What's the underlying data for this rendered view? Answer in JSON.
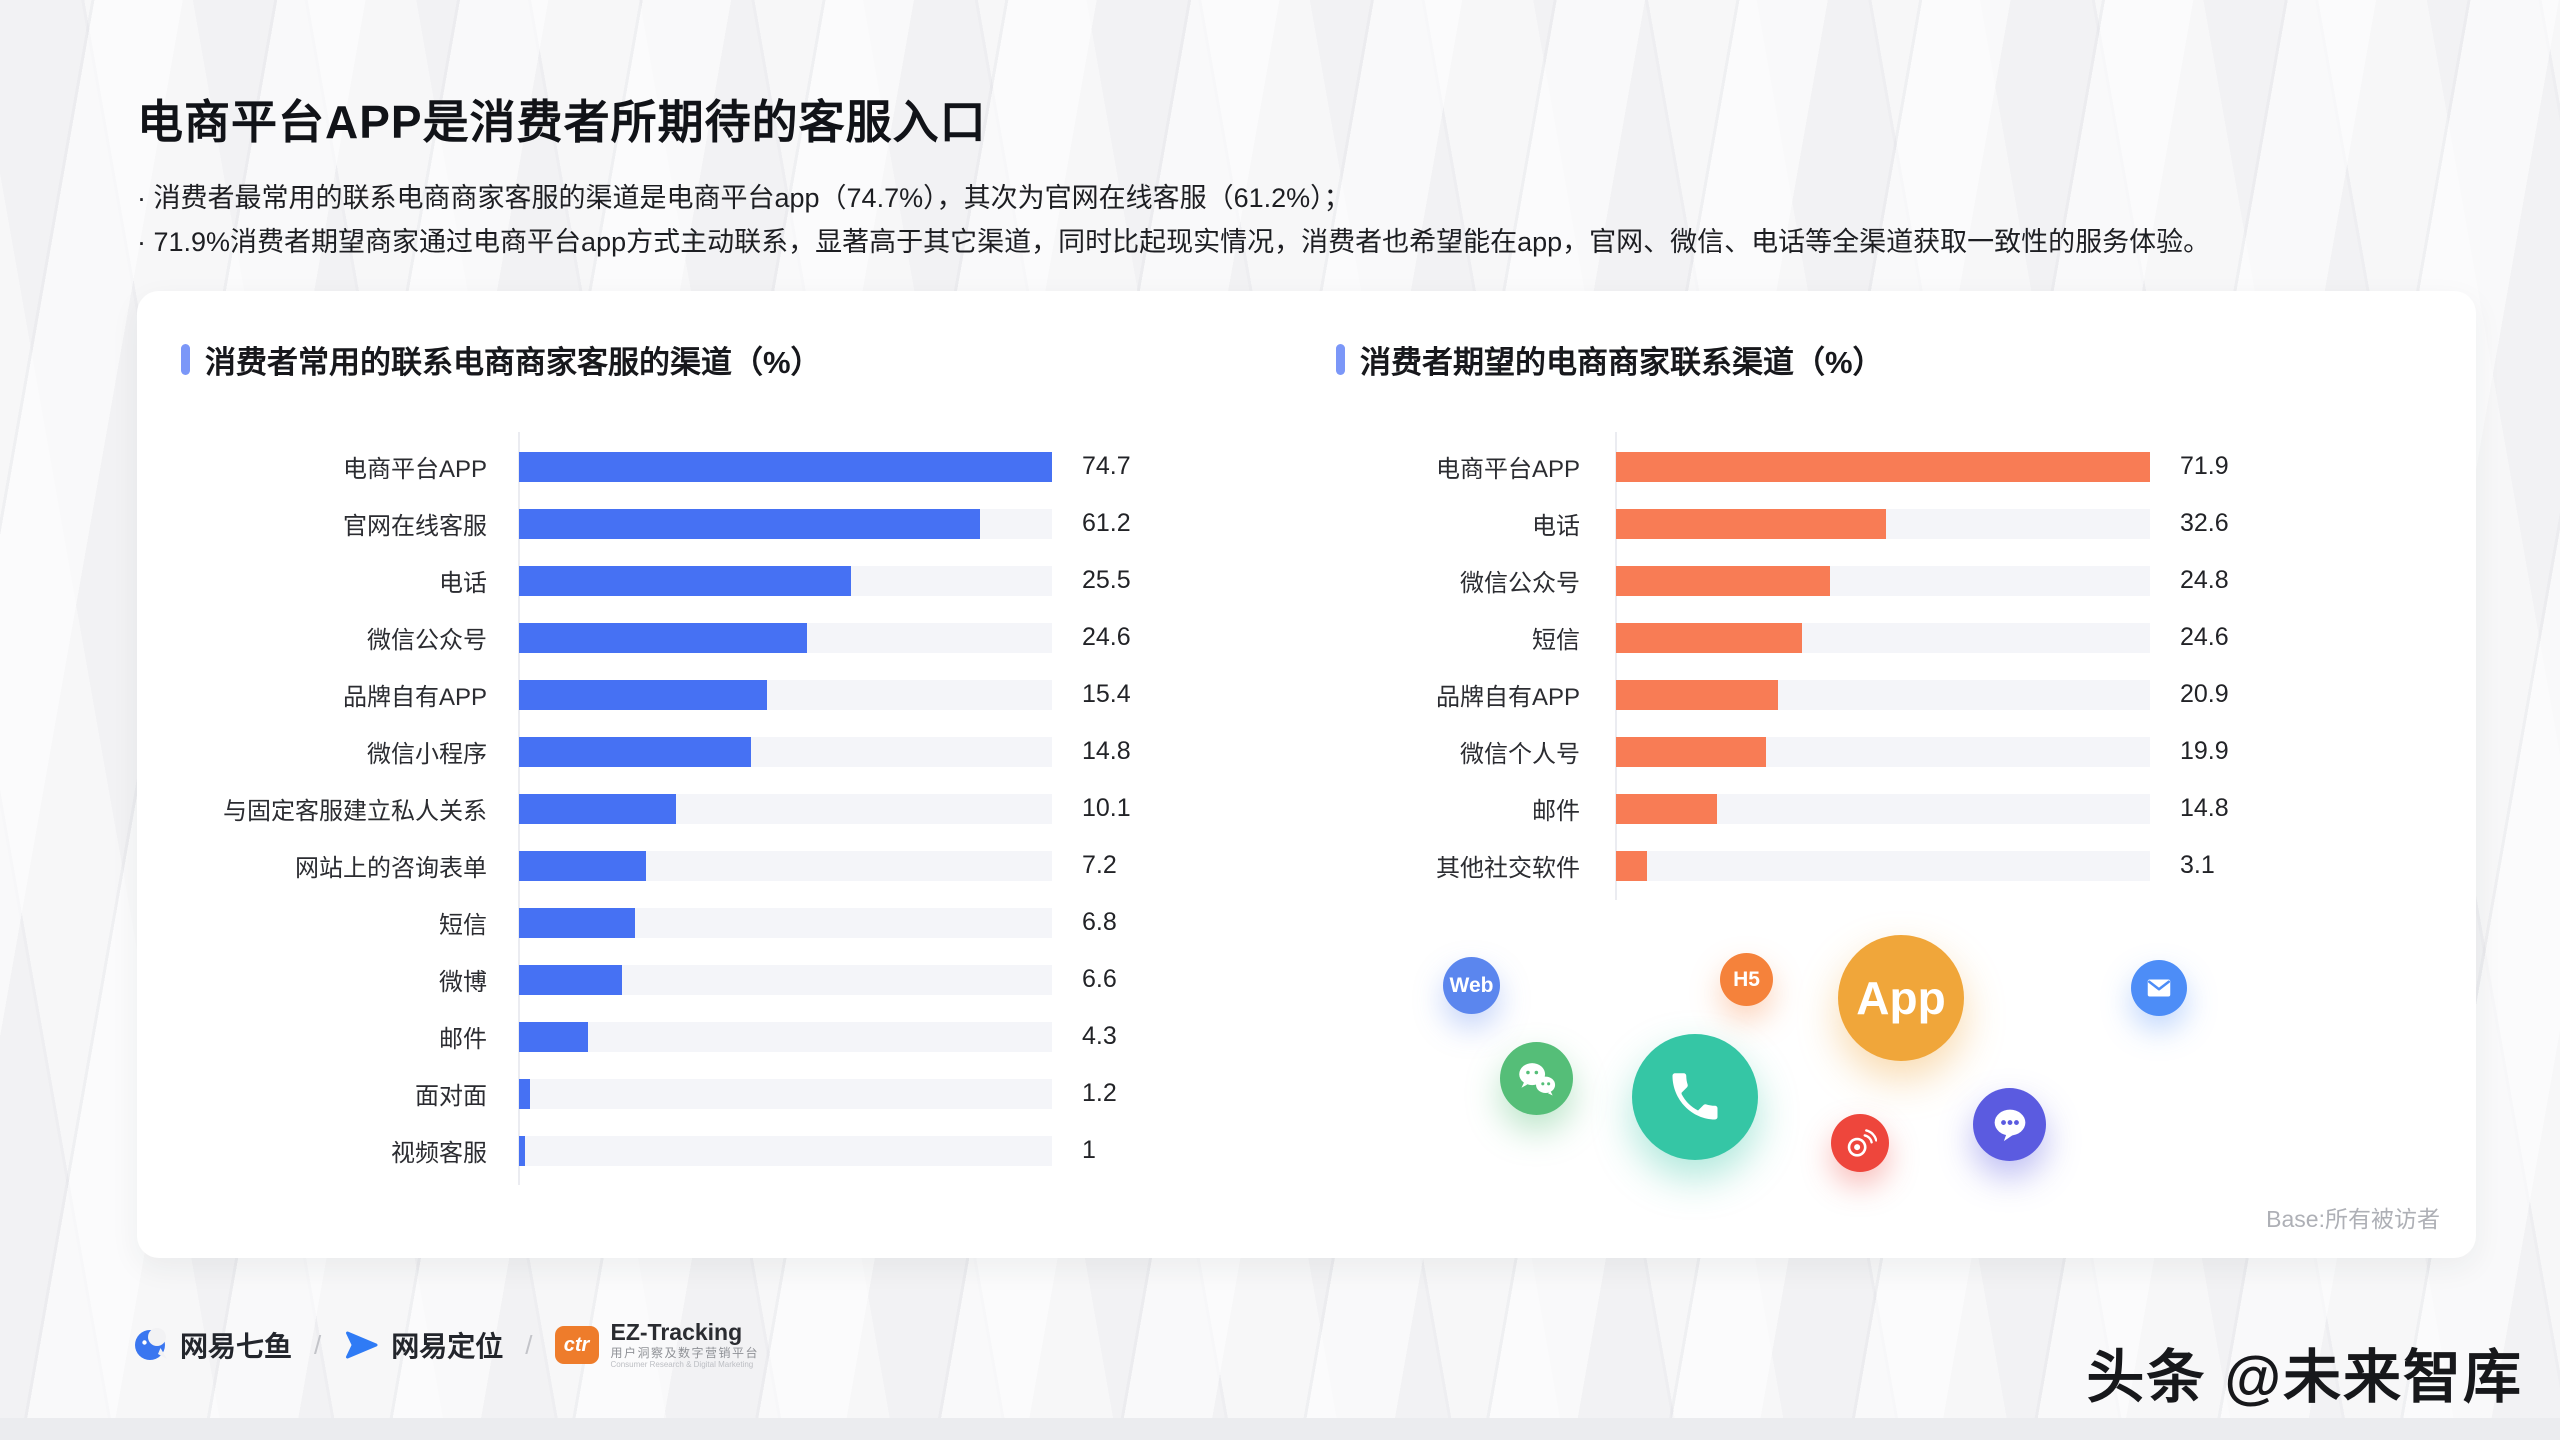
{
  "page": {
    "title": "电商平台APP是消费者所期待的客服入口",
    "bullets": [
      "· 消费者最常用的联系电商商家客服的渠道是电商平台app（74.7%），其次为官网在线客服（61.2%）；",
      "· 71.9%消费者期望商家通过电商平台app方式主动联系，显著高于其它渠道，同时比起现实情况，消费者也希望能在app，官网、微信、电话等全渠道获取一致性的服务体验。"
    ],
    "base_note": "Base:所有被访者",
    "watermark": "头条 @未来智库"
  },
  "ui": {
    "accent_color": "#7b97f8",
    "card_background": "#ffffff"
  },
  "chart_data": [
    {
      "type": "bar",
      "orientation": "horizontal",
      "title": "消费者常用的联系电商商家客服的渠道（%）",
      "categories": [
        "电商平台APP",
        "官网在线客服",
        "电话",
        "微信公众号",
        "品牌自有APP",
        "微信小程序",
        "与固定客服建立私人关系",
        "网站上的咨询表单",
        "短信",
        "微博",
        "邮件",
        "面对面",
        "视频客服"
      ],
      "values": [
        74.7,
        61.2,
        25.5,
        24.6,
        15.4,
        14.8,
        10.1,
        7.2,
        6.8,
        6.6,
        4.3,
        1.2,
        1
      ],
      "bar_color": "#4671f3",
      "track_color": "#f4f5f9",
      "bar_display_pct": [
        100,
        86.5,
        62.3,
        54.0,
        46.6,
        43.5,
        29.4,
        23.9,
        21.8,
        19.3,
        12.9,
        2.1,
        1.2
      ],
      "value_labels_shown": true,
      "grid": false,
      "legend": "none"
    },
    {
      "type": "bar",
      "orientation": "horizontal",
      "title": "消费者期望的电商商家联系渠道（%）",
      "categories": [
        "电商平台APP",
        "电话",
        "微信公众号",
        "短信",
        "品牌自有APP",
        "微信个人号",
        "邮件",
        "其他社交软件"
      ],
      "values": [
        71.9,
        32.6,
        24.8,
        24.6,
        20.9,
        19.9,
        14.8,
        3.1
      ],
      "bar_color": "#f87c55",
      "track_color": "#f4f5f9",
      "bar_display_pct": [
        100,
        50.5,
        40.1,
        34.9,
        30.3,
        28.1,
        19.0,
        5.8
      ],
      "value_labels_shown": true,
      "grid": false,
      "legend": "none"
    }
  ],
  "icon_cluster": {
    "web": {
      "label": "Web",
      "color": "#5b86ee"
    },
    "h5": {
      "label": "H5",
      "color": "#f5823b"
    },
    "app": {
      "label": "App",
      "color": "#f0a63a"
    },
    "email": {
      "color": "#4d8df7"
    },
    "wechat": {
      "color": "#55be78"
    },
    "phone": {
      "color": "#35c6a5"
    },
    "weibo": {
      "color": "#ee463c"
    },
    "chat": {
      "color": "#5b5be0"
    }
  },
  "footer": {
    "qiyu_label": "网易七鱼",
    "separator": "/",
    "dingwei_label": "网易定位",
    "ez_badge": "ctr",
    "ez_name": "EZ-Tracking",
    "ez_sub_cn": "用户洞察及数字营销平台",
    "ez_sub_en": "Consumer Research & Digital Marketing"
  }
}
